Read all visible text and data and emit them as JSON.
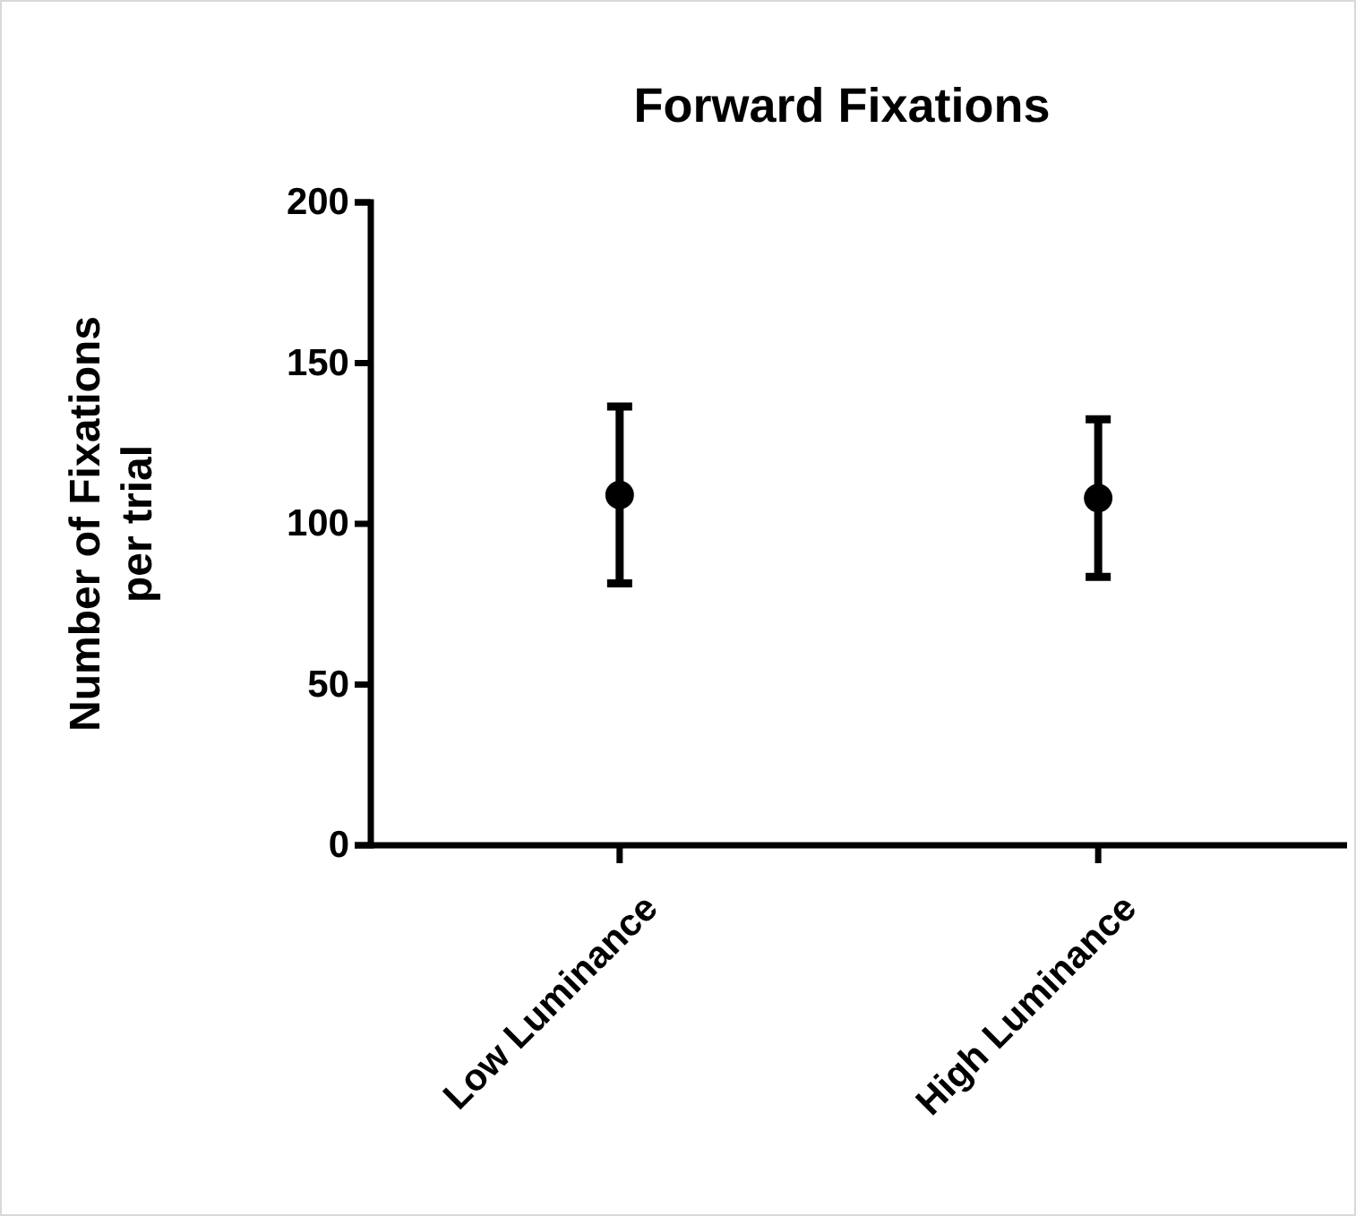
{
  "chart_data": {
    "type": "scatter",
    "title": "Forward Fixations",
    "ylabel": "Number of Fixations\nper trial",
    "categories": [
      "Low Luminance",
      "High Luminance"
    ],
    "series": [
      {
        "color": "#000000",
        "values": [
          109,
          108
        ],
        "errors": [
          27.5,
          24.5
        ]
      }
    ],
    "ylim": [
      0,
      200
    ],
    "yticks": [
      0,
      50,
      100,
      150,
      200
    ],
    "grid": false,
    "marker": "circle"
  }
}
